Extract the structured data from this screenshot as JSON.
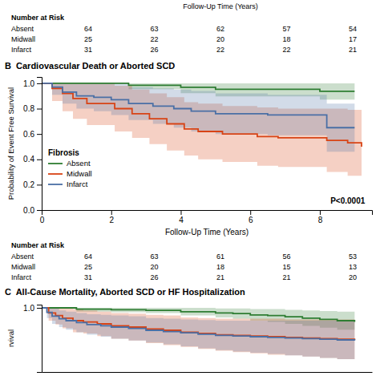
{
  "chart_data": [
    {
      "type": "table",
      "title": "Follow-Up Time (Years)",
      "subtitle": "Number at Risk",
      "series": [
        {
          "name": "Absent",
          "values": [
            64,
            63,
            62,
            57,
            54
          ]
        },
        {
          "name": "Midwall",
          "values": [
            25,
            22,
            20,
            18,
            17
          ]
        },
        {
          "name": "Infarct",
          "values": [
            31,
            26,
            22,
            22,
            21
          ]
        }
      ]
    },
    {
      "type": "step",
      "title": "B  Cardiovascular Death or Aborted SCD",
      "xlabel": "Follow-Up Time (Years)",
      "ylabel": "Probability of Event Free Survival",
      "xlim": [
        0,
        9.5
      ],
      "ylim": [
        0.0,
        1.05
      ],
      "xticks": [
        0,
        2,
        4,
        6,
        8
      ],
      "yticks": [
        {
          "value": 0.0,
          "label": "0.0"
        },
        0.2,
        0.4,
        0.6,
        0.8,
        {
          "value": 1.0,
          "label": "1.0"
        }
      ],
      "grid": false,
      "legend": "lower left",
      "legend_title": "Fibrosis",
      "annotations": [
        {
          "text": "P<0.0001",
          "x": 9.3,
          "y": 0.05
        }
      ],
      "series": [
        {
          "name": "Absent",
          "color": "#2e7d32",
          "x": [
            0,
            0.5,
            1.0,
            2.0,
            2.5,
            3.5,
            4.0,
            5.0,
            6.0,
            7.5,
            8.0,
            9.0
          ],
          "values": [
            1.0,
            1.0,
            1.0,
            1.0,
            0.984,
            0.984,
            0.969,
            0.953,
            0.953,
            0.953,
            0.937,
            0.937
          ],
          "lower": [
            1.0,
            1.0,
            1.0,
            1.0,
            0.953,
            0.953,
            0.922,
            0.897,
            0.897,
            0.897,
            0.872,
            0.872
          ],
          "upper": [
            1.0,
            1.0,
            1.0,
            1.0,
            1.0,
            1.0,
            1.0,
            1.0,
            1.0,
            1.0,
            1.0,
            1.0
          ]
        },
        {
          "name": "Midwall",
          "color": "#d84315",
          "x": [
            0,
            0.3,
            0.6,
            0.9,
            1.3,
            1.8,
            2.1,
            2.6,
            3.1,
            3.6,
            4.1,
            4.5,
            5.2,
            5.7,
            6.2,
            6.8,
            7.5,
            8.2,
            8.8,
            9.2
          ],
          "values": [
            1.0,
            0.96,
            0.92,
            0.88,
            0.84,
            0.84,
            0.8,
            0.76,
            0.72,
            0.68,
            0.64,
            0.62,
            0.6,
            0.6,
            0.58,
            0.57,
            0.57,
            0.55,
            0.53,
            0.5
          ],
          "lower": [
            1.0,
            0.86,
            0.78,
            0.72,
            0.67,
            0.67,
            0.62,
            0.57,
            0.52,
            0.47,
            0.43,
            0.4,
            0.38,
            0.38,
            0.35,
            0.34,
            0.34,
            0.3,
            0.27,
            0.25
          ],
          "upper": [
            1.0,
            1.0,
            1.0,
            1.0,
            1.0,
            1.0,
            0.98,
            0.95,
            0.92,
            0.89,
            0.85,
            0.84,
            0.82,
            0.82,
            0.81,
            0.8,
            0.8,
            0.8,
            0.79,
            0.75
          ]
        },
        {
          "name": "Infarct",
          "color": "#4a6fa5",
          "x": [
            0,
            0.3,
            0.6,
            1.0,
            1.5,
            2.0,
            2.5,
            3.2,
            3.8,
            4.3,
            5.0,
            5.8,
            6.5,
            7.2,
            7.9,
            8.2,
            9.0
          ],
          "values": [
            1.0,
            0.97,
            0.93,
            0.9,
            0.89,
            0.87,
            0.84,
            0.82,
            0.8,
            0.78,
            0.76,
            0.76,
            0.75,
            0.75,
            0.75,
            0.65,
            0.65
          ],
          "lower": [
            1.0,
            0.91,
            0.84,
            0.8,
            0.78,
            0.75,
            0.71,
            0.68,
            0.65,
            0.62,
            0.6,
            0.6,
            0.59,
            0.59,
            0.59,
            0.46,
            0.46
          ],
          "upper": [
            1.0,
            1.0,
            1.0,
            1.0,
            1.0,
            1.0,
            0.97,
            0.96,
            0.95,
            0.94,
            0.92,
            0.92,
            0.91,
            0.91,
            0.91,
            0.84,
            0.84
          ]
        }
      ]
    },
    {
      "type": "table",
      "title": "Number at Risk",
      "series": [
        {
          "name": "Absent",
          "values": [
            64,
            63,
            61,
            56,
            53
          ]
        },
        {
          "name": "Midwall",
          "values": [
            25,
            20,
            18,
            15,
            13
          ]
        },
        {
          "name": "Infarct",
          "values": [
            31,
            26,
            21,
            21,
            20
          ]
        }
      ]
    },
    {
      "type": "step",
      "title": "C  All-Cause Mortality, Aborted SCD or HF Hospitalization",
      "ylabel": "rvival",
      "xlim": [
        0,
        9.5
      ],
      "ylim": [
        0.0,
        1.05
      ],
      "yticks": [
        {
          "value": 1.0,
          "label": "1.0"
        }
      ],
      "tick_labels": "y",
      "grid": false,
      "series": [
        {
          "color": "#2e7d32",
          "x": [
            0,
            0.5,
            1.0,
            2.0,
            3.0,
            4.0,
            5.0,
            5.5,
            6.0,
            6.5,
            7.0,
            7.5,
            8.0,
            8.5,
            9.0
          ],
          "values": [
            1.0,
            1.0,
            0.98,
            0.97,
            0.96,
            0.94,
            0.92,
            0.91,
            0.89,
            0.88,
            0.86,
            0.84,
            0.82,
            0.8,
            0.78
          ],
          "lower": [
            1.0,
            1.0,
            0.94,
            0.93,
            0.92,
            0.88,
            0.85,
            0.83,
            0.8,
            0.78,
            0.75,
            0.72,
            0.69,
            0.66,
            0.63
          ],
          "upper": [
            1.0,
            1.0,
            1.0,
            1.0,
            1.0,
            1.0,
            0.99,
            0.99,
            0.98,
            0.98,
            0.97,
            0.96,
            0.95,
            0.94,
            0.93
          ]
        },
        {
          "color": "#d84315",
          "x": [
            0,
            0.2,
            0.4,
            0.6,
            0.9,
            1.2,
            1.6,
            2.0,
            2.5,
            3.0,
            3.5,
            4.0,
            4.5,
            5.0,
            5.5,
            6.0,
            6.5,
            7.0,
            7.5,
            8.0,
            8.5,
            9.0
          ],
          "values": [
            1.0,
            0.92,
            0.88,
            0.84,
            0.8,
            0.78,
            0.75,
            0.72,
            0.7,
            0.67,
            0.65,
            0.62,
            0.6,
            0.58,
            0.57,
            0.56,
            0.55,
            0.54,
            0.53,
            0.52,
            0.51,
            0.5
          ],
          "lower": [
            1.0,
            0.8,
            0.74,
            0.68,
            0.62,
            0.6,
            0.56,
            0.52,
            0.49,
            0.45,
            0.42,
            0.39,
            0.36,
            0.33,
            0.31,
            0.29,
            0.27,
            0.26,
            0.24,
            0.22,
            0.2,
            0.18
          ],
          "upper": [
            1.0,
            1.0,
            1.0,
            1.0,
            0.98,
            0.96,
            0.94,
            0.92,
            0.91,
            0.89,
            0.88,
            0.85,
            0.84,
            0.83,
            0.83,
            0.83,
            0.83,
            0.82,
            0.82,
            0.82,
            0.82,
            0.82
          ]
        },
        {
          "color": "#4a6fa5",
          "x": [
            0,
            0.15,
            0.3,
            0.5,
            0.7,
            1.0,
            1.3,
            1.7,
            2.0,
            2.5,
            3.0,
            3.5,
            4.0,
            4.5,
            5.0,
            5.5,
            6.0,
            6.5,
            7.0,
            7.5,
            8.0,
            8.5,
            9.0
          ],
          "values": [
            1.0,
            0.93,
            0.87,
            0.83,
            0.8,
            0.77,
            0.74,
            0.72,
            0.7,
            0.68,
            0.65,
            0.63,
            0.61,
            0.59,
            0.57,
            0.56,
            0.55,
            0.54,
            0.53,
            0.52,
            0.51,
            0.5,
            0.49
          ],
          "lower": [
            1.0,
            0.84,
            0.75,
            0.7,
            0.66,
            0.62,
            0.58,
            0.55,
            0.52,
            0.49,
            0.46,
            0.43,
            0.4,
            0.37,
            0.34,
            0.32,
            0.3,
            0.28,
            0.26,
            0.24,
            0.22,
            0.2,
            0.18
          ],
          "upper": [
            1.0,
            1.0,
            0.99,
            0.96,
            0.94,
            0.92,
            0.9,
            0.89,
            0.88,
            0.87,
            0.84,
            0.83,
            0.82,
            0.81,
            0.8,
            0.8,
            0.8,
            0.8,
            0.8,
            0.8,
            0.8,
            0.8,
            0.8
          ]
        }
      ]
    }
  ]
}
